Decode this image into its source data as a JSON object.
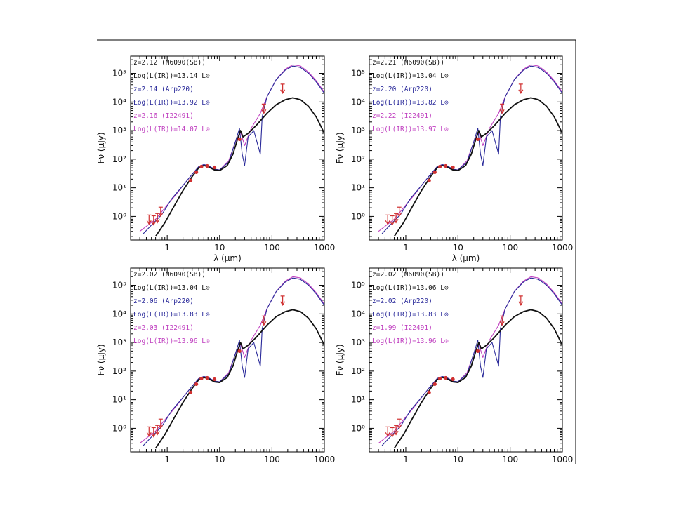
{
  "chart_data": [
    {
      "type": "line",
      "xscale": "log",
      "yscale": "log",
      "xlim": [
        0.2,
        1000
      ],
      "ylim": [
        0.15,
        400000
      ],
      "xlabel": "λ (μm)",
      "ylabel": "Fν (μJy)",
      "xticks": [
        "1",
        "10",
        "100",
        "1000"
      ],
      "yticks": [
        "10⁰",
        "10¹",
        "10²",
        "10³",
        "10⁴",
        "10⁵"
      ],
      "legend": [
        {
          "text": "z=2.12 (N6090(SB))",
          "color": "#111111"
        },
        {
          "text": "Log(L(IR))=13.14 L⊙",
          "color": "#111111"
        },
        {
          "text": "z=2.14 (Arp220)",
          "color": "#2a2a9a"
        },
        {
          "text": "Log(L(IR))=13.92 L⊙",
          "color": "#2a2a9a"
        },
        {
          "text": "z=2.16 (I22491)",
          "color": "#c040c0"
        },
        {
          "text": "Log(L(IR))=14.07 L⊙",
          "color": "#c040c0"
        }
      ]
    },
    {
      "type": "line",
      "xscale": "log",
      "yscale": "log",
      "xlim": [
        0.2,
        1000
      ],
      "ylim": [
        0.15,
        400000
      ],
      "xlabel": "λ (μm)",
      "ylabel": "Fν (μJy)",
      "xticks": [
        "1",
        "10",
        "100",
        "1000"
      ],
      "yticks": [
        "10⁰",
        "10¹",
        "10²",
        "10³",
        "10⁴",
        "10⁵"
      ],
      "legend": [
        {
          "text": "z=2.21 (N6090(SB))",
          "color": "#111111"
        },
        {
          "text": "Log(L(IR))=13.04 L⊙",
          "color": "#111111"
        },
        {
          "text": "z=2.20 (Arp220)",
          "color": "#2a2a9a"
        },
        {
          "text": "Log(L(IR))=13.82 L⊙",
          "color": "#2a2a9a"
        },
        {
          "text": "z=2.22 (I22491)",
          "color": "#c040c0"
        },
        {
          "text": "Log(L(IR))=13.97 L⊙",
          "color": "#c040c0"
        }
      ]
    },
    {
      "type": "line",
      "xscale": "log",
      "yscale": "log",
      "xlim": [
        0.2,
        1000
      ],
      "ylim": [
        0.15,
        400000
      ],
      "xlabel": "",
      "ylabel": "Fν (μJy)",
      "xticks": [
        "1",
        "10",
        "100",
        "1000"
      ],
      "yticks": [
        "10⁰",
        "10¹",
        "10²",
        "10³",
        "10⁴",
        "10⁵"
      ],
      "legend": [
        {
          "text": "z=2.02 (N6090(SB))",
          "color": "#111111"
        },
        {
          "text": "Log(L(IR))=13.04 L⊙",
          "color": "#111111"
        },
        {
          "text": "z=2.06 (Arp220)",
          "color": "#2a2a9a"
        },
        {
          "text": "Log(L(IR))=13.83 L⊙",
          "color": "#2a2a9a"
        },
        {
          "text": "z=2.03 (I22491)",
          "color": "#c040c0"
        },
        {
          "text": "Log(L(IR))=13.96 L⊙",
          "color": "#c040c0"
        }
      ]
    },
    {
      "type": "line",
      "xscale": "log",
      "yscale": "log",
      "xlim": [
        0.2,
        1000
      ],
      "ylim": [
        0.15,
        400000
      ],
      "xlabel": "",
      "ylabel": "Fν (μJy)",
      "xticks": [
        "1",
        "10",
        "100",
        "1000"
      ],
      "yticks": [
        "10⁰",
        "10¹",
        "10²",
        "10³",
        "10⁴",
        "10⁵"
      ],
      "legend": [
        {
          "text": "z=2.02 (N6090(SB))",
          "color": "#111111"
        },
        {
          "text": "Log(L(IR))=13.06 L⊙",
          "color": "#111111"
        },
        {
          "text": "z=2.02 (Arp220)",
          "color": "#2a2a9a"
        },
        {
          "text": "Log(L(IR))=13.83 L⊙",
          "color": "#2a2a9a"
        },
        {
          "text": "z=1.99 (I22491)",
          "color": "#c040c0"
        },
        {
          "text": "Log(L(IR))=13.96 L⊙",
          "color": "#c040c0"
        }
      ]
    }
  ],
  "series_colors": {
    "n6090": "#111111",
    "arp220": "#2a2a9a",
    "i22491": "#c040c0",
    "data": "#d03030"
  },
  "sed_templates": {
    "n6090": [
      [
        0.6,
        0.2
      ],
      [
        0.9,
        0.6
      ],
      [
        1.3,
        2
      ],
      [
        2,
        8
      ],
      [
        3,
        25
      ],
      [
        4,
        50
      ],
      [
        5,
        60
      ],
      [
        6,
        55
      ],
      [
        8,
        42
      ],
      [
        10,
        40
      ],
      [
        14,
        60
      ],
      [
        18,
        150
      ],
      [
        22,
        500
      ],
      [
        25,
        1000
      ],
      [
        28,
        600
      ],
      [
        35,
        800
      ],
      [
        50,
        1500
      ],
      [
        80,
        4000
      ],
      [
        120,
        8000
      ],
      [
        180,
        12000
      ],
      [
        250,
        14000
      ],
      [
        350,
        12000
      ],
      [
        500,
        7000
      ],
      [
        700,
        3000
      ],
      [
        1000,
        800
      ]
    ],
    "arp220": [
      [
        0.35,
        0.25
      ],
      [
        0.5,
        0.5
      ],
      [
        0.8,
        1.2
      ],
      [
        1.2,
        4
      ],
      [
        2,
        12
      ],
      [
        3,
        30
      ],
      [
        4,
        55
      ],
      [
        5,
        65
      ],
      [
        6,
        60
      ],
      [
        8,
        45
      ],
      [
        10,
        42
      ],
      [
        15,
        80
      ],
      [
        20,
        400
      ],
      [
        24,
        1200
      ],
      [
        27,
        150
      ],
      [
        30,
        60
      ],
      [
        35,
        600
      ],
      [
        45,
        1000
      ],
      [
        60,
        150
      ],
      [
        65,
        3000
      ],
      [
        80,
        15000
      ],
      [
        120,
        60000
      ],
      [
        180,
        130000
      ],
      [
        250,
        180000
      ],
      [
        350,
        160000
      ],
      [
        500,
        100000
      ],
      [
        700,
        50000
      ],
      [
        1000,
        20000
      ]
    ],
    "i22491": [
      [
        0.3,
        0.3
      ],
      [
        0.4,
        0.45
      ],
      [
        0.6,
        0.8
      ],
      [
        1,
        2.5
      ],
      [
        1.5,
        6
      ],
      [
        2,
        12
      ],
      [
        3,
        30
      ],
      [
        4,
        55
      ],
      [
        5,
        65
      ],
      [
        6,
        60
      ],
      [
        8,
        45
      ],
      [
        10,
        42
      ],
      [
        15,
        90
      ],
      [
        20,
        400
      ],
      [
        25,
        900
      ],
      [
        30,
        300
      ],
      [
        40,
        1200
      ],
      [
        60,
        4000
      ],
      [
        80,
        15000
      ],
      [
        120,
        60000
      ],
      [
        180,
        140000
      ],
      [
        250,
        200000
      ],
      [
        350,
        180000
      ],
      [
        500,
        110000
      ],
      [
        700,
        55000
      ],
      [
        1000,
        22000
      ]
    ]
  },
  "photometry": [
    [
      2.8,
      18
    ],
    [
      3.6,
      35
    ],
    [
      4.5,
      55
    ],
    [
      5.8,
      58
    ],
    [
      8,
      52
    ],
    [
      24,
      500
    ]
  ],
  "upper_limits": [
    [
      0.45,
      0.8
    ],
    [
      0.55,
      0.75
    ],
    [
      0.65,
      0.9
    ],
    [
      0.75,
      1.5
    ],
    [
      70,
      6000
    ],
    [
      160,
      30000
    ]
  ]
}
